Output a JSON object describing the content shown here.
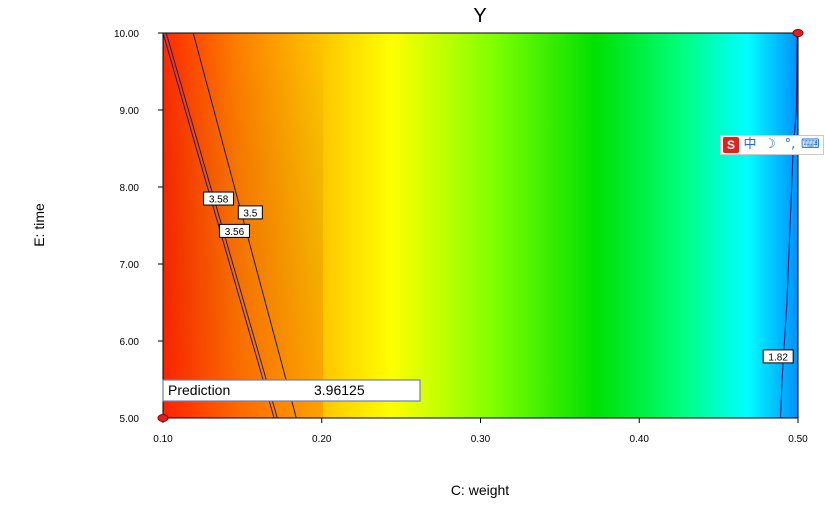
{
  "chart_data": {
    "type": "contour",
    "title": "Y",
    "xlabel": "C: weight",
    "ylabel": "E: time",
    "xlim": [
      0.1,
      0.5
    ],
    "ylim": [
      5.0,
      10.0
    ],
    "x_ticks": [
      "0.10",
      "0.20",
      "0.30",
      "0.40",
      "0.50"
    ],
    "y_ticks": [
      "5.00",
      "6.00",
      "7.00",
      "8.00",
      "9.00",
      "10.00"
    ],
    "color_scale": [
      "#ff2a00",
      "#ff8c00",
      "#ffff00",
      "#7fff00",
      "#00e000",
      "#00ff7f",
      "#00ffff",
      "#0090ff"
    ],
    "contours": [
      {
        "label": "3.58",
        "points": [
          [
            0.1,
            10.0
          ],
          [
            0.17,
            5.0
          ]
        ]
      },
      {
        "label": "3.56",
        "points": [
          [
            0.102,
            10.0
          ],
          [
            0.172,
            5.0
          ]
        ]
      },
      {
        "label": "3.5",
        "points": [
          [
            0.119,
            10.0
          ],
          [
            0.184,
            5.0
          ]
        ]
      },
      {
        "label": "1.82",
        "points": [
          [
            0.4995,
            10.0
          ],
          [
            0.499,
            9.0
          ],
          [
            0.497,
            8.5
          ],
          [
            0.495,
            7.5
          ],
          [
            0.493,
            6.5
          ],
          [
            0.49,
            5.5
          ],
          [
            0.489,
            5.0
          ]
        ]
      }
    ],
    "contour_labels": [
      {
        "text": "3.58",
        "x": 0.135,
        "y": 7.85
      },
      {
        "text": "3.5",
        "x": 0.155,
        "y": 7.67
      },
      {
        "text": "3.56",
        "x": 0.145,
        "y": 7.43
      },
      {
        "text": "1.82",
        "x": 0.4875,
        "y": 5.8
      }
    ],
    "design_points": [
      {
        "x": 0.1,
        "y": 5.0
      },
      {
        "x": 0.5,
        "y": 10.0
      }
    ],
    "prediction": {
      "label": "Prediction",
      "value": "3.96125"
    }
  },
  "ime_toolbar": {
    "logo": "S",
    "items": [
      "中",
      "☽",
      "°,",
      "⌨"
    ]
  }
}
